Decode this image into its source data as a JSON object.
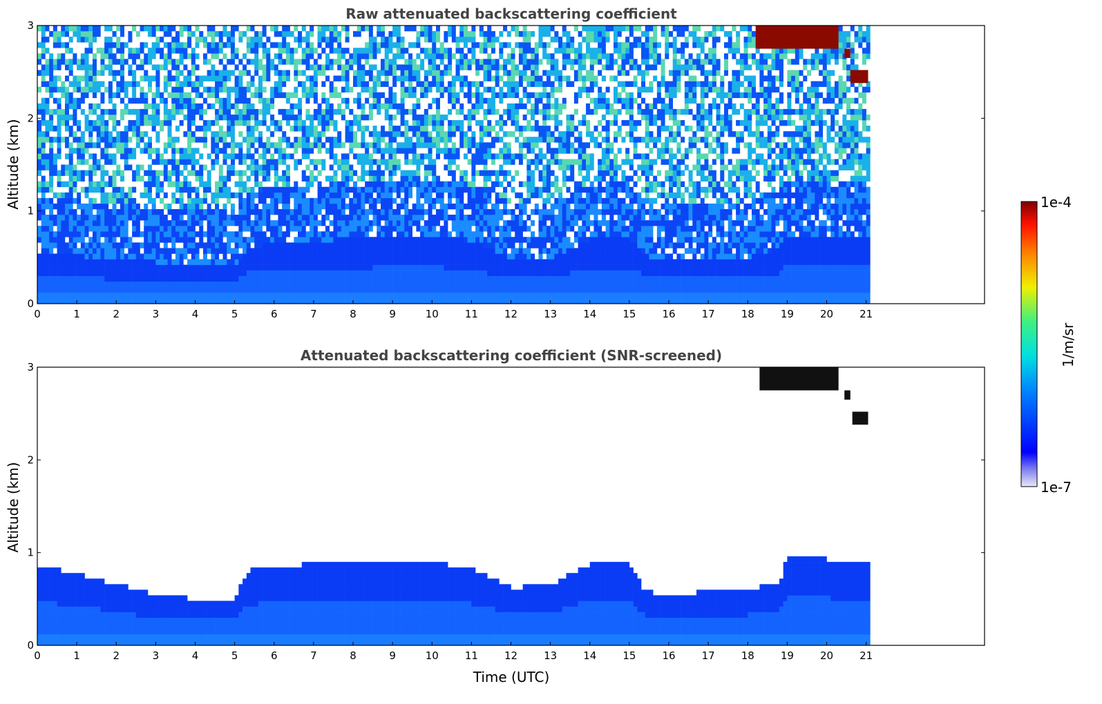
{
  "chart_data": [
    {
      "type": "heatmap",
      "title": "Raw attenuated backscattering coefficient",
      "xlabel": "",
      "ylabel": "Altitude (km)",
      "xlim": [
        0,
        24
      ],
      "ylim": [
        0,
        3
      ],
      "x_ticks": [
        0,
        1,
        2,
        3,
        4,
        5,
        6,
        7,
        8,
        9,
        10,
        11,
        12,
        13,
        14,
        15,
        16,
        17,
        18,
        19,
        20,
        21
      ],
      "y_ticks": [
        0,
        1,
        2,
        3
      ],
      "data_end_time": 21.1,
      "screened": false,
      "boundary_layer_top_km": [
        [
          0,
          0.55
        ],
        [
          1,
          0.52
        ],
        [
          2,
          0.48
        ],
        [
          3,
          0.45
        ],
        [
          4,
          0.42
        ],
        [
          5,
          0.4
        ],
        [
          5.3,
          0.6
        ],
        [
          6,
          0.65
        ],
        [
          7,
          0.68
        ],
        [
          8,
          0.7
        ],
        [
          9,
          0.72
        ],
        [
          10,
          0.72
        ],
        [
          11,
          0.68
        ],
        [
          12,
          0.5
        ],
        [
          13,
          0.5
        ],
        [
          14,
          0.7
        ],
        [
          15,
          0.7
        ],
        [
          15.5,
          0.5
        ],
        [
          16,
          0.5
        ],
        [
          17,
          0.5
        ],
        [
          18,
          0.5
        ],
        [
          18.8,
          0.6
        ],
        [
          19,
          0.75
        ],
        [
          20,
          0.75
        ],
        [
          21,
          0.72
        ]
      ],
      "cloud_patches": [
        {
          "t0": 18.2,
          "t1": 20.3,
          "z0": 2.75,
          "z1": 3.0,
          "level": "max"
        },
        {
          "t0": 20.45,
          "t1": 20.6,
          "z0": 2.65,
          "z1": 2.75,
          "level": "max"
        },
        {
          "t0": 20.6,
          "t1": 21.05,
          "z0": 2.38,
          "z1": 2.52,
          "level": "max"
        }
      ]
    },
    {
      "type": "heatmap",
      "title": "Attenuated backscattering coefficient (SNR-screened)",
      "xlabel": "Time (UTC)",
      "ylabel": "Altitude (km)",
      "xlim": [
        0,
        24
      ],
      "ylim": [
        0,
        3
      ],
      "x_ticks": [
        0,
        1,
        2,
        3,
        4,
        5,
        6,
        7,
        8,
        9,
        10,
        11,
        12,
        13,
        14,
        15,
        16,
        17,
        18,
        19,
        20,
        21
      ],
      "y_ticks": [
        0,
        1,
        2,
        3
      ],
      "data_end_time": 21.1,
      "screened": true,
      "screened_top_km": [
        [
          0,
          0.85
        ],
        [
          1,
          0.78
        ],
        [
          2,
          0.66
        ],
        [
          3,
          0.55
        ],
        [
          4,
          0.5
        ],
        [
          5,
          0.5
        ],
        [
          5.3,
          0.8
        ],
        [
          6,
          0.85
        ],
        [
          7,
          0.88
        ],
        [
          8,
          0.9
        ],
        [
          9,
          0.9
        ],
        [
          10,
          0.9
        ],
        [
          11,
          0.82
        ],
        [
          12,
          0.62
        ],
        [
          13,
          0.65
        ],
        [
          14,
          0.88
        ],
        [
          15,
          0.88
        ],
        [
          15.4,
          0.58
        ],
        [
          16,
          0.55
        ],
        [
          17,
          0.58
        ],
        [
          18,
          0.6
        ],
        [
          18.8,
          0.68
        ],
        [
          19,
          0.95
        ],
        [
          20,
          0.93
        ],
        [
          21,
          0.9
        ]
      ],
      "cloud_patches": [
        {
          "t0": 18.3,
          "t1": 20.3,
          "z0": 2.75,
          "z1": 3.0,
          "level": "saturated"
        },
        {
          "t0": 20.45,
          "t1": 20.6,
          "z0": 2.65,
          "z1": 2.75,
          "level": "saturated"
        },
        {
          "t0": 20.65,
          "t1": 21.05,
          "z0": 2.38,
          "z1": 2.52,
          "level": "saturated"
        }
      ]
    }
  ],
  "colorbar": {
    "label": "1/m/sr",
    "max_label": "1e-4",
    "min_label": "1e-7",
    "scale": "log",
    "colormap": "jet"
  }
}
